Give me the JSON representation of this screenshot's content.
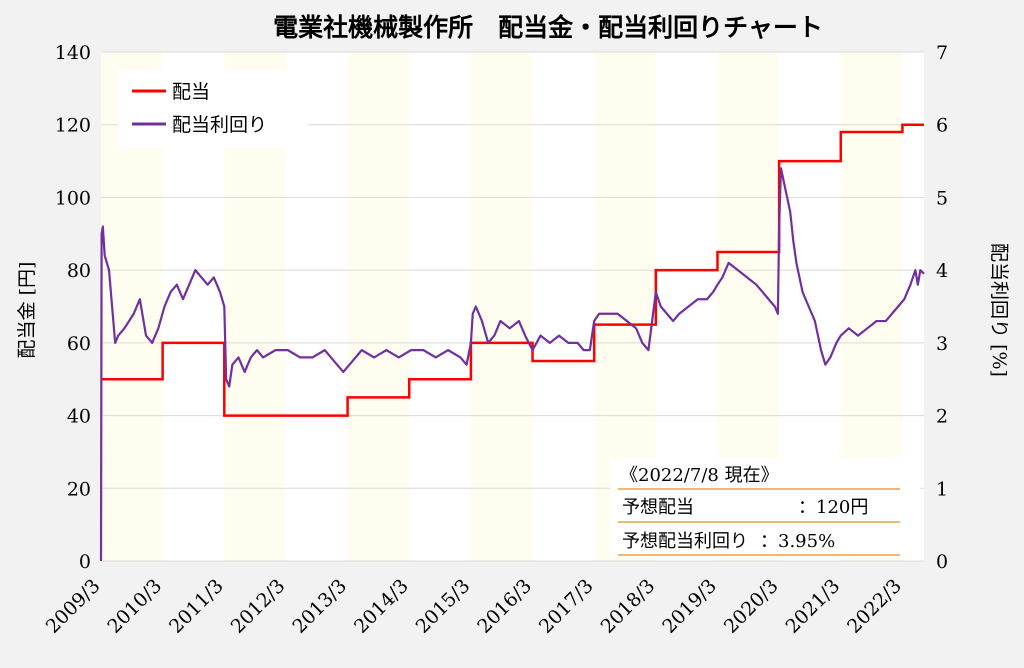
{
  "chart_data": {
    "type": "line",
    "title": "電業社機械製作所　配当金・配当利回りチャート",
    "ylabel_left": "配当金 [円]",
    "ylabel_right": "配当利回り [%]",
    "xlabel": "",
    "ylim_left": [
      0,
      140
    ],
    "ylim_right": [
      0,
      7
    ],
    "yticks_left": [
      "0",
      "20",
      "40",
      "60",
      "80",
      "100",
      "120",
      "140"
    ],
    "yticks_right": [
      "0",
      "1",
      "2",
      "3",
      "4",
      "5",
      "6",
      "7"
    ],
    "xticks": [
      "2009/3",
      "2010/3",
      "2011/3",
      "2012/3",
      "2013/3",
      "2014/3",
      "2015/3",
      "2016/3",
      "2017/3",
      "2018/3",
      "2019/3",
      "2020/3",
      "2021/3",
      "2022/3"
    ],
    "x_range": [
      2009.17,
      2022.52
    ],
    "legend_position": "top-left",
    "series": [
      {
        "name": "配当",
        "axis": "left",
        "color": "#ff0000",
        "step_points": [
          [
            2009.17,
            50
          ],
          [
            2010.17,
            60
          ],
          [
            2011.17,
            40
          ],
          [
            2013.17,
            45
          ],
          [
            2014.17,
            50
          ],
          [
            2015.17,
            60
          ],
          [
            2016.17,
            55
          ],
          [
            2017.17,
            65
          ],
          [
            2018.17,
            80
          ],
          [
            2019.17,
            85
          ],
          [
            2020.17,
            110
          ],
          [
            2021.17,
            118
          ],
          [
            2022.17,
            120
          ],
          [
            2022.52,
            120
          ]
        ]
      },
      {
        "name": "配当利回り",
        "axis": "right",
        "color": "#7030a0",
        "points": [
          [
            2009.17,
            0.0
          ],
          [
            2009.18,
            4.5
          ],
          [
            2009.2,
            4.6
          ],
          [
            2009.23,
            4.2
          ],
          [
            2009.3,
            4.0
          ],
          [
            2009.35,
            3.5
          ],
          [
            2009.4,
            3.0
          ],
          [
            2009.45,
            3.1
          ],
          [
            2009.55,
            3.2
          ],
          [
            2009.7,
            3.4
          ],
          [
            2009.8,
            3.6
          ],
          [
            2009.9,
            3.1
          ],
          [
            2010.0,
            3.0
          ],
          [
            2010.1,
            3.2
          ],
          [
            2010.2,
            3.5
          ],
          [
            2010.3,
            3.7
          ],
          [
            2010.4,
            3.8
          ],
          [
            2010.5,
            3.6
          ],
          [
            2010.6,
            3.8
          ],
          [
            2010.7,
            4.0
          ],
          [
            2010.8,
            3.9
          ],
          [
            2010.9,
            3.8
          ],
          [
            2011.0,
            3.9
          ],
          [
            2011.1,
            3.7
          ],
          [
            2011.17,
            3.5
          ],
          [
            2011.2,
            2.5
          ],
          [
            2011.25,
            2.4
          ],
          [
            2011.3,
            2.7
          ],
          [
            2011.4,
            2.8
          ],
          [
            2011.5,
            2.6
          ],
          [
            2011.6,
            2.8
          ],
          [
            2011.7,
            2.9
          ],
          [
            2011.8,
            2.8
          ],
          [
            2012.0,
            2.9
          ],
          [
            2012.2,
            2.9
          ],
          [
            2012.4,
            2.8
          ],
          [
            2012.6,
            2.8
          ],
          [
            2012.8,
            2.9
          ],
          [
            2012.9,
            2.8
          ],
          [
            2013.0,
            2.7
          ],
          [
            2013.1,
            2.6
          ],
          [
            2013.2,
            2.7
          ],
          [
            2013.4,
            2.9
          ],
          [
            2013.6,
            2.8
          ],
          [
            2013.8,
            2.9
          ],
          [
            2014.0,
            2.8
          ],
          [
            2014.2,
            2.9
          ],
          [
            2014.4,
            2.9
          ],
          [
            2014.6,
            2.8
          ],
          [
            2014.8,
            2.9
          ],
          [
            2015.0,
            2.8
          ],
          [
            2015.1,
            2.7
          ],
          [
            2015.17,
            3.0
          ],
          [
            2015.2,
            3.4
          ],
          [
            2015.25,
            3.5
          ],
          [
            2015.35,
            3.3
          ],
          [
            2015.45,
            3.0
          ],
          [
            2015.55,
            3.1
          ],
          [
            2015.65,
            3.3
          ],
          [
            2015.8,
            3.2
          ],
          [
            2015.95,
            3.3
          ],
          [
            2016.05,
            3.1
          ],
          [
            2016.17,
            2.9
          ],
          [
            2016.3,
            3.1
          ],
          [
            2016.45,
            3.0
          ],
          [
            2016.6,
            3.1
          ],
          [
            2016.75,
            3.0
          ],
          [
            2016.9,
            3.0
          ],
          [
            2017.0,
            2.9
          ],
          [
            2017.1,
            2.9
          ],
          [
            2017.17,
            3.3
          ],
          [
            2017.25,
            3.4
          ],
          [
            2017.4,
            3.4
          ],
          [
            2017.55,
            3.4
          ],
          [
            2017.7,
            3.3
          ],
          [
            2017.85,
            3.2
          ],
          [
            2017.95,
            3.0
          ],
          [
            2018.05,
            2.9
          ],
          [
            2018.17,
            3.7
          ],
          [
            2018.25,
            3.5
          ],
          [
            2018.35,
            3.4
          ],
          [
            2018.45,
            3.3
          ],
          [
            2018.55,
            3.4
          ],
          [
            2018.7,
            3.5
          ],
          [
            2018.85,
            3.6
          ],
          [
            2019.0,
            3.6
          ],
          [
            2019.1,
            3.7
          ],
          [
            2019.17,
            3.8
          ],
          [
            2019.25,
            3.9
          ],
          [
            2019.35,
            4.1
          ],
          [
            2019.5,
            4.0
          ],
          [
            2019.65,
            3.9
          ],
          [
            2019.8,
            3.8
          ],
          [
            2019.9,
            3.7
          ],
          [
            2020.0,
            3.6
          ],
          [
            2020.1,
            3.5
          ],
          [
            2020.15,
            3.4
          ],
          [
            2020.17,
            4.6
          ],
          [
            2020.2,
            5.4
          ],
          [
            2020.25,
            5.2
          ],
          [
            2020.3,
            5.0
          ],
          [
            2020.35,
            4.8
          ],
          [
            2020.4,
            4.4
          ],
          [
            2020.45,
            4.1
          ],
          [
            2020.5,
            3.9
          ],
          [
            2020.55,
            3.7
          ],
          [
            2020.65,
            3.5
          ],
          [
            2020.75,
            3.3
          ],
          [
            2020.85,
            2.9
          ],
          [
            2020.92,
            2.7
          ],
          [
            2021.0,
            2.8
          ],
          [
            2021.1,
            3.0
          ],
          [
            2021.17,
            3.1
          ],
          [
            2021.3,
            3.2
          ],
          [
            2021.45,
            3.1
          ],
          [
            2021.6,
            3.2
          ],
          [
            2021.75,
            3.3
          ],
          [
            2021.9,
            3.3
          ],
          [
            2022.0,
            3.4
          ],
          [
            2022.1,
            3.5
          ],
          [
            2022.2,
            3.6
          ],
          [
            2022.3,
            3.8
          ],
          [
            2022.38,
            4.0
          ],
          [
            2022.42,
            3.8
          ],
          [
            2022.46,
            4.0
          ],
          [
            2022.52,
            3.95
          ]
        ]
      }
    ]
  },
  "info_box": {
    "heading": "《2022/7/8 現在》",
    "rows": [
      {
        "label": "予想配当",
        "value": "：120円"
      },
      {
        "label": "予想配当利回り",
        "value": "：3.95%"
      }
    ]
  },
  "colors": {
    "background": "#f2f2f2",
    "plot_background": "#ffffff",
    "band_odd": "#fffdf0",
    "band_even": "#ffffff",
    "grid": "#d9d9d9",
    "info_rule": "#e8a040"
  }
}
